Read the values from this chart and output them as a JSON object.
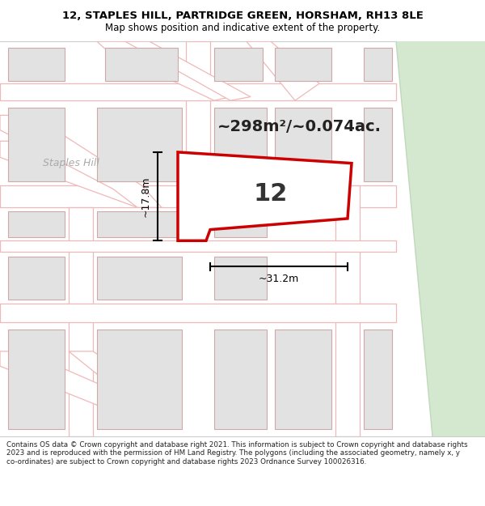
{
  "title_line1": "12, STAPLES HILL, PARTRIDGE GREEN, HORSHAM, RH13 8LE",
  "title_line2": "Map shows position and indicative extent of the property.",
  "area_text": "~298m²/~0.074ac.",
  "label_number": "12",
  "dim_width": "~31.2m",
  "dim_height": "~17.8m",
  "footer_text": "Contains OS data © Crown copyright and database right 2021. This information is subject to Crown copyright and database rights 2023 and is reproduced with the permission of HM Land Registry. The polygons (including the associated geometry, namely x, y co-ordinates) are subject to Crown copyright and database rights 2023 Ordnance Survey 100026316.",
  "map_bg": "#f7f7f7",
  "road_stroke": "#f0b8b8",
  "road_fill": "#ffffff",
  "block_fill": "#e2e2e2",
  "block_edge": "#d0a8a8",
  "green_fill": "#d4e8d0",
  "green_edge": "#c0d8bc",
  "prop_edge": "#cc0000",
  "prop_lw": 2.5,
  "prop_fill": "#ffffff",
  "title_bg": "#ffffff",
  "footer_bg": "#ffffff",
  "road_label_color": "#aaaaaa",
  "staples_hill_label": "Staples Hill",
  "title_fontsize": 9.5,
  "subtitle_fontsize": 8.5,
  "area_fontsize": 14,
  "num_fontsize": 22,
  "dim_fontsize": 9,
  "footer_fontsize": 6.3
}
